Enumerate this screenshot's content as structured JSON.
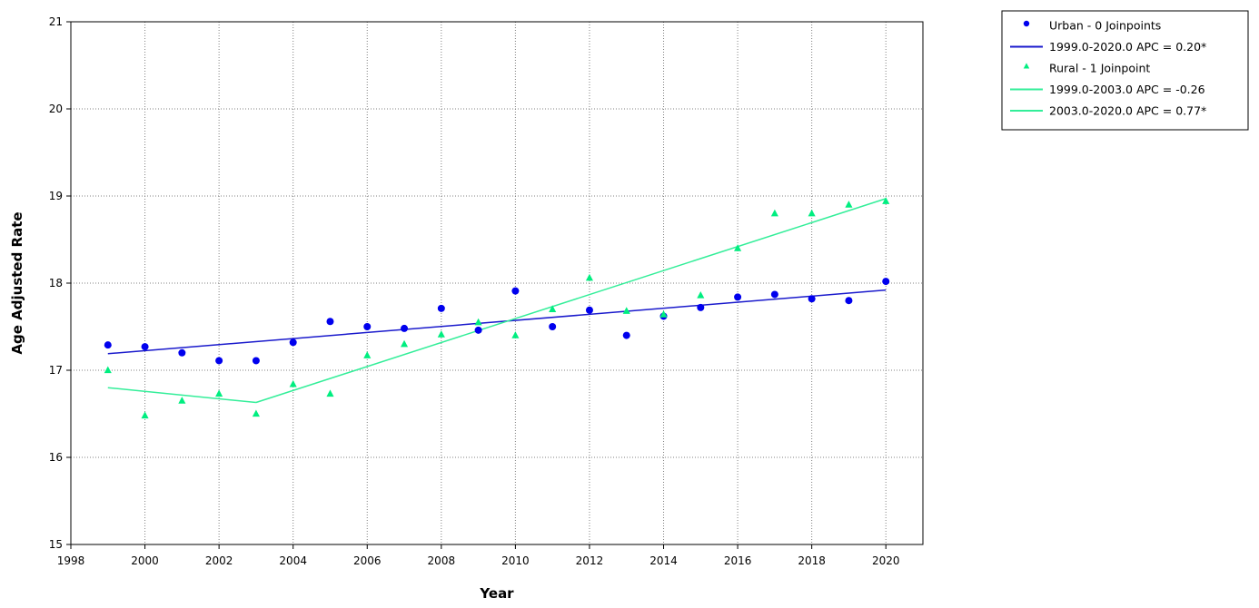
{
  "chart_data": {
    "type": "scatter",
    "title": "",
    "xlabel": "Year",
    "ylabel": "Age Adjusted Rate",
    "xlim": [
      1998,
      2021
    ],
    "ylim": [
      15,
      21
    ],
    "x_ticks": [
      1998,
      2000,
      2002,
      2004,
      2006,
      2008,
      2010,
      2012,
      2014,
      2016,
      2018,
      2020
    ],
    "y_ticks": [
      15,
      16,
      17,
      18,
      19,
      20,
      21
    ],
    "grid": true,
    "legend_position": "top-right",
    "series": [
      {
        "name": "Urban - 0 Joinpoints",
        "marker": "circle",
        "color": "#0000ee",
        "x": [
          1999,
          2000,
          2001,
          2002,
          2003,
          2004,
          2005,
          2006,
          2007,
          2008,
          2009,
          2010,
          2011,
          2012,
          2013,
          2014,
          2015,
          2016,
          2017,
          2018,
          2019,
          2020
        ],
        "y": [
          17.29,
          17.27,
          17.2,
          17.11,
          17.11,
          17.32,
          17.56,
          17.5,
          17.48,
          17.71,
          17.46,
          17.91,
          17.5,
          17.69,
          17.4,
          17.62,
          17.72,
          17.84,
          17.87,
          17.82,
          17.8,
          18.02
        ]
      },
      {
        "name": "Rural - 1 Joinpoint",
        "marker": "triangle",
        "color": "#00ee80",
        "x": [
          1999,
          2000,
          2001,
          2002,
          2003,
          2004,
          2005,
          2006,
          2007,
          2008,
          2009,
          2010,
          2011,
          2012,
          2013,
          2014,
          2015,
          2016,
          2017,
          2018,
          2019,
          2020
        ],
        "y": [
          17.0,
          16.48,
          16.65,
          16.73,
          16.5,
          16.84,
          16.73,
          17.17,
          17.3,
          17.41,
          17.55,
          17.4,
          17.7,
          18.06,
          17.68,
          17.64,
          17.86,
          18.4,
          18.8,
          18.8,
          18.9,
          18.94
        ]
      }
    ],
    "fit_lines": [
      {
        "name": "1999.0-2020.0 APC  = 0.20*",
        "color": "#1a1acc",
        "x": [
          1999,
          2020
        ],
        "y": [
          17.19,
          17.92
        ]
      },
      {
        "name": "1999.0-2003.0 APC  = -0.26",
        "color": "#33ee99",
        "x": [
          1999,
          2003
        ],
        "y": [
          16.8,
          16.63
        ]
      },
      {
        "name": "2003.0-2020.0 APC  =  0.77*",
        "color": "#33ee99",
        "x": [
          2003,
          2020
        ],
        "y": [
          16.63,
          18.97
        ]
      }
    ],
    "legend": [
      {
        "label": "Urban - 0 Joinpoints",
        "kind": "circle",
        "color": "#0000ee"
      },
      {
        "label": "1999.0-2020.0 APC  = 0.20*",
        "kind": "line",
        "color": "#1a1acc"
      },
      {
        "label": "Rural - 1 Joinpoint",
        "kind": "triangle",
        "color": "#00ee80"
      },
      {
        "label": "1999.0-2003.0 APC  = -0.26",
        "kind": "line",
        "color": "#33ee99"
      },
      {
        "label": "2003.0-2020.0 APC  =  0.77*",
        "kind": "line",
        "color": "#33ee99"
      }
    ]
  }
}
